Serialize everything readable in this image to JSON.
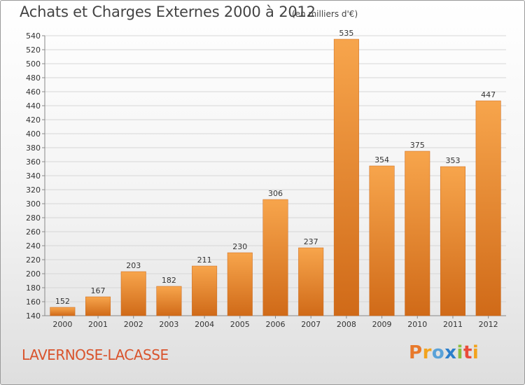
{
  "header": {
    "title": "Achats et Charges Externes 2000 à 2012",
    "unit": "(en milliers d'€)"
  },
  "footer": {
    "commune": "LAVERNOSE-LACASSE",
    "logo": "Proxiti"
  },
  "colors": {
    "bar_light": "#f7a54c",
    "bar_dark": "#d06a18",
    "commune_text": "#d9532c",
    "logo_letters": [
      "#e8792b",
      "#f2a31d",
      "#5aa2d8",
      "#2b7fcb",
      "#8cbf3f",
      "#e94c3a",
      "#f2a31d"
    ]
  },
  "chart_data": {
    "type": "bar",
    "title": "Achats et Charges Externes 2000 à 2012",
    "subtitle": "(en milliers d'€)",
    "categories": [
      "2000",
      "2001",
      "2002",
      "2003",
      "2004",
      "2005",
      "2006",
      "2007",
      "2008",
      "2009",
      "2010",
      "2011",
      "2012"
    ],
    "values": [
      152,
      167,
      203,
      182,
      211,
      230,
      306,
      237,
      535,
      354,
      375,
      353,
      447
    ],
    "ylim": [
      140,
      540
    ],
    "yticks": [
      140,
      160,
      180,
      200,
      220,
      240,
      260,
      280,
      300,
      320,
      340,
      360,
      380,
      400,
      420,
      440,
      460,
      480,
      500,
      520,
      540
    ],
    "grid": true,
    "legend": "none"
  }
}
